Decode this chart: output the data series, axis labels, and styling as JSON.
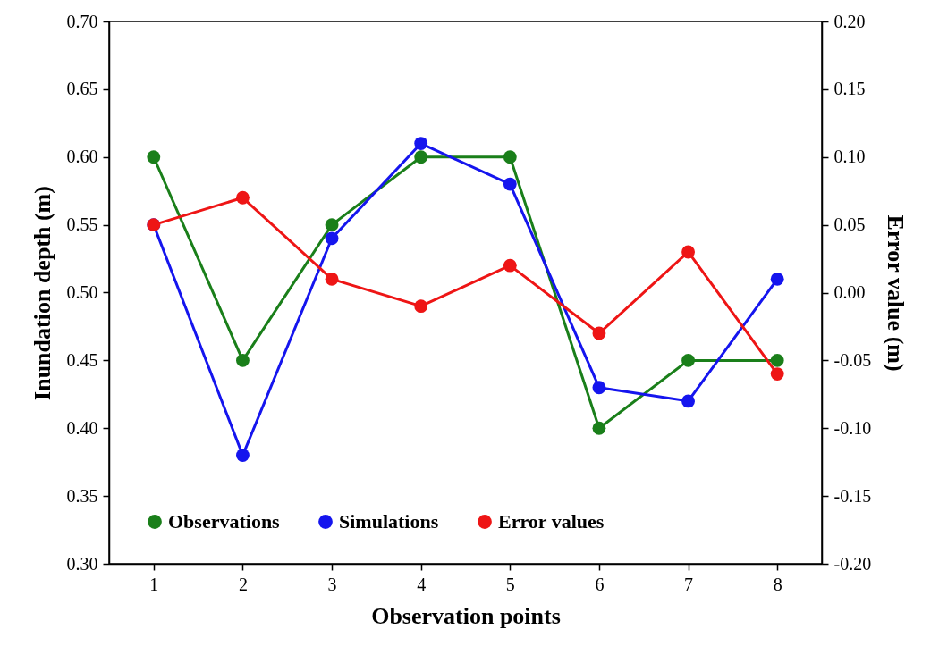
{
  "chart_data": {
    "type": "line",
    "xlabel": "Observation points",
    "ylabel": "Inundation depth (m)",
    "y2label": "Error value (m)",
    "x": [
      1,
      2,
      3,
      4,
      5,
      6,
      7,
      8
    ],
    "series": [
      {
        "name": "Observations",
        "color": "#1a7f1a",
        "values": [
          0.6,
          0.45,
          0.55,
          0.6,
          0.6,
          0.4,
          0.45,
          0.45
        ]
      },
      {
        "name": "Simulations",
        "color": "#1515ee",
        "values": [
          0.55,
          0.38,
          0.54,
          0.61,
          0.58,
          0.43,
          0.42,
          0.51
        ]
      },
      {
        "name": "Error values",
        "color": "#ee1515",
        "axis": "y2",
        "values": [
          0.05,
          0.07,
          0.01,
          -0.01,
          0.02,
          -0.03,
          0.03,
          -0.06
        ]
      }
    ],
    "xlim": [
      0.5,
      8.5
    ],
    "xticks": [
      1,
      2,
      3,
      4,
      5,
      6,
      7,
      8
    ],
    "ylim": [
      0.3,
      0.7
    ],
    "yticks": [
      {
        "value": 0.3,
        "label": "0.30"
      },
      {
        "value": 0.35,
        "label": "0.35"
      },
      {
        "value": 0.4,
        "label": "0.40"
      },
      {
        "value": 0.45,
        "label": "0.45"
      },
      {
        "value": 0.5,
        "label": "0.50"
      },
      {
        "value": 0.55,
        "label": "0.55"
      },
      {
        "value": 0.6,
        "label": "0.60"
      },
      {
        "value": 0.65,
        "label": "0.65"
      },
      {
        "value": 0.7,
        "label": "0.70"
      }
    ],
    "y2lim": [
      -0.2,
      0.2
    ],
    "y2ticks": [
      {
        "value": -0.2,
        "label": "-0.20"
      },
      {
        "value": -0.15,
        "label": "-0.15"
      },
      {
        "value": -0.1,
        "label": "-0.10"
      },
      {
        "value": -0.05,
        "label": "-0.05"
      },
      {
        "value": 0,
        "label": "0.00"
      },
      {
        "value": 0.05,
        "label": "0.05"
      },
      {
        "value": 0.1,
        "label": "0.10"
      },
      {
        "value": 0.15,
        "label": "0.15"
      },
      {
        "value": 0.2,
        "label": "0.20"
      }
    ],
    "grid": false,
    "legend": "bottom",
    "marker": "circle",
    "line_style": "solid"
  }
}
